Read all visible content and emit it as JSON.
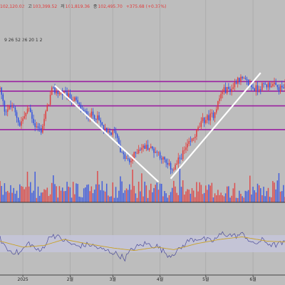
{
  "ohlc": {
    "open_value": "102,120.02",
    "high_label": "고",
    "high_value": "103,399.52",
    "low_label": "저",
    "low_value": "101,819.36",
    "close_label": "종",
    "close_value": "102,495.70",
    "change_value": "+375.68 (+0.37%)"
  },
  "indicator_params": "9 26 52 26 20 1 2",
  "colors": {
    "up": "#e23b3b",
    "down": "#2f4fe0",
    "level_line": "#9a1fa0",
    "trend_line": "#ffffff",
    "rsi_line": "#4b4b9a",
    "rsi_signal": "#c9a227",
    "background": "#bdbdbd",
    "rsi_band": "#c4c4d8"
  },
  "chart_data": {
    "type": "candlestick",
    "x_tick_labels": [
      "2025",
      "2월",
      "3월",
      "4월",
      "5월",
      "6월"
    ],
    "x_tick_dates": [
      "2025-01-01",
      "2025-02-01",
      "2025-03-01",
      "2025-04-01",
      "2025-05-01",
      "2025-06-01"
    ],
    "x_range": [
      "2024-12-17",
      "2025-06-22"
    ],
    "y_range": [
      74000,
      118000
    ],
    "grid": true,
    "horizontal_levels": [
      106800,
      103800,
      99200,
      91800
    ],
    "trend_lines": [
      {
        "from": [
          "2025-01-22",
          105500
        ],
        "to": [
          "2025-03-31",
          75500
        ]
      },
      {
        "from": [
          "2025-04-08",
          76500
        ],
        "to": [
          "2025-06-06",
          109500
        ]
      }
    ],
    "price_anchors": [
      [
        "2024-12-17",
        104500
      ],
      [
        "2024-12-20",
        98000
      ],
      [
        "2024-12-25",
        99000
      ],
      [
        "2024-12-30",
        93500
      ],
      [
        "2025-01-05",
        98500
      ],
      [
        "2025-01-09",
        93000
      ],
      [
        "2025-01-13",
        91500
      ],
      [
        "2025-01-20",
        104000
      ],
      [
        "2025-01-27",
        103000
      ],
      [
        "2025-02-04",
        101000
      ],
      [
        "2025-02-10",
        97000
      ],
      [
        "2025-02-18",
        96000
      ],
      [
        "2025-02-25",
        90500
      ],
      [
        "2025-03-03",
        91000
      ],
      [
        "2025-03-07",
        84000
      ],
      [
        "2025-03-12",
        81500
      ],
      [
        "2025-03-18",
        86000
      ],
      [
        "2025-03-24",
        86500
      ],
      [
        "2025-03-31",
        84500
      ],
      [
        "2025-04-06",
        80500
      ],
      [
        "2025-04-10",
        79500
      ],
      [
        "2025-04-16",
        84500
      ],
      [
        "2025-04-22",
        88500
      ],
      [
        "2025-04-29",
        94500
      ],
      [
        "2025-05-06",
        96500
      ],
      [
        "2025-05-12",
        104000
      ],
      [
        "2025-05-18",
        104500
      ],
      [
        "2025-05-22",
        108000
      ],
      [
        "2025-05-28",
        106500
      ],
      [
        "2025-06-02",
        104500
      ],
      [
        "2025-06-08",
        105500
      ],
      [
        "2025-06-13",
        106000
      ],
      [
        "2025-06-18",
        104500
      ],
      [
        "2025-06-22",
        105000
      ]
    ],
    "rsi": {
      "range": [
        0,
        100
      ],
      "band": [
        30,
        70
      ],
      "anchors": [
        [
          "2024-12-17",
          62
        ],
        [
          "2024-12-22",
          35
        ],
        [
          "2024-12-30",
          28
        ],
        [
          "2025-01-05",
          52
        ],
        [
          "2025-01-12",
          30
        ],
        [
          "2025-01-20",
          72
        ],
        [
          "2025-01-28",
          58
        ],
        [
          "2025-02-05",
          44
        ],
        [
          "2025-02-14",
          48
        ],
        [
          "2025-02-22",
          36
        ],
        [
          "2025-03-01",
          30
        ],
        [
          "2025-03-09",
          16
        ],
        [
          "2025-03-14",
          38
        ],
        [
          "2025-03-22",
          50
        ],
        [
          "2025-03-30",
          44
        ],
        [
          "2025-04-07",
          22
        ],
        [
          "2025-04-13",
          34
        ],
        [
          "2025-04-20",
          58
        ],
        [
          "2025-04-27",
          63
        ],
        [
          "2025-05-05",
          55
        ],
        [
          "2025-05-12",
          74
        ],
        [
          "2025-05-20",
          68
        ],
        [
          "2025-05-26",
          72
        ],
        [
          "2025-06-01",
          48
        ],
        [
          "2025-06-07",
          58
        ],
        [
          "2025-06-14",
          46
        ],
        [
          "2025-06-22",
          52
        ]
      ],
      "signal_anchors": [
        [
          "2024-12-17",
          56
        ],
        [
          "2025-01-01",
          42
        ],
        [
          "2025-01-15",
          46
        ],
        [
          "2025-01-28",
          60
        ],
        [
          "2025-02-12",
          50
        ],
        [
          "2025-03-01",
          40
        ],
        [
          "2025-03-15",
          34
        ],
        [
          "2025-03-30",
          42
        ],
        [
          "2025-04-10",
          36
        ],
        [
          "2025-04-25",
          50
        ],
        [
          "2025-05-10",
          60
        ],
        [
          "2025-05-25",
          66
        ],
        [
          "2025-06-10",
          56
        ],
        [
          "2025-06-22",
          54
        ]
      ]
    }
  }
}
